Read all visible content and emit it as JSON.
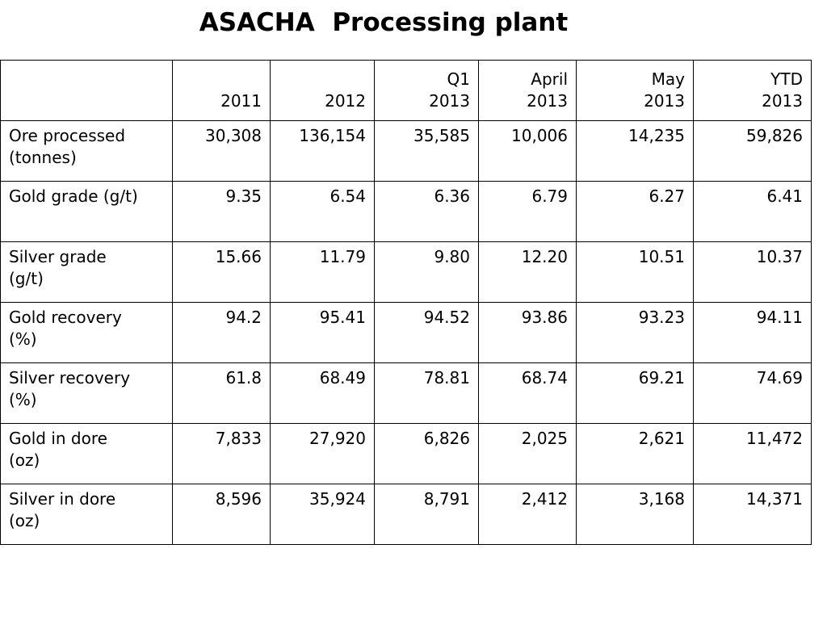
{
  "title": "ASACHA  Processing plant",
  "table": {
    "columns": [
      {
        "line1": "",
        "line2": "2011"
      },
      {
        "line1": "",
        "line2": "2012"
      },
      {
        "line1": "Q1",
        "line2": "2013"
      },
      {
        "line1": "April",
        "line2": "2013"
      },
      {
        "line1": "May",
        "line2": "2013"
      },
      {
        "line1": "YTD",
        "line2": "2013"
      }
    ],
    "rows": [
      {
        "label1": "Ore processed",
        "label2": "(tonnes)",
        "values": [
          "30,308",
          "136,154",
          "35,585",
          "10,006",
          "14,235",
          "59,826"
        ]
      },
      {
        "label1": "Gold grade (g/t)",
        "label2": "",
        "values": [
          "9.35",
          "6.54",
          "6.36",
          "6.79",
          "6.27",
          "6.41"
        ]
      },
      {
        "label1": "Silver grade",
        "label2": "(g/t)",
        "values": [
          "15.66",
          "11.79",
          "9.80",
          "12.20",
          "10.51",
          "10.37"
        ]
      },
      {
        "label1": "Gold recovery",
        "label2": "(%)",
        "values": [
          "94.2",
          "95.41",
          "94.52",
          "93.86",
          "93.23",
          "94.11"
        ]
      },
      {
        "label1": "Silver recovery",
        "label2": "(%)",
        "values": [
          "61.8",
          "68.49",
          "78.81",
          "68.74",
          "69.21",
          "74.69"
        ]
      },
      {
        "label1": "Gold in dore",
        "label2": "(oz)",
        "values": [
          "7,833",
          "27,920",
          "6,826",
          "2,025",
          "2,621",
          "11,472"
        ]
      },
      {
        "label1": "Silver in dore",
        "label2": "(oz)",
        "values": [
          "8,596",
          "35,924",
          "8,791",
          "2,412",
          "3,168",
          "14,371"
        ]
      }
    ]
  }
}
